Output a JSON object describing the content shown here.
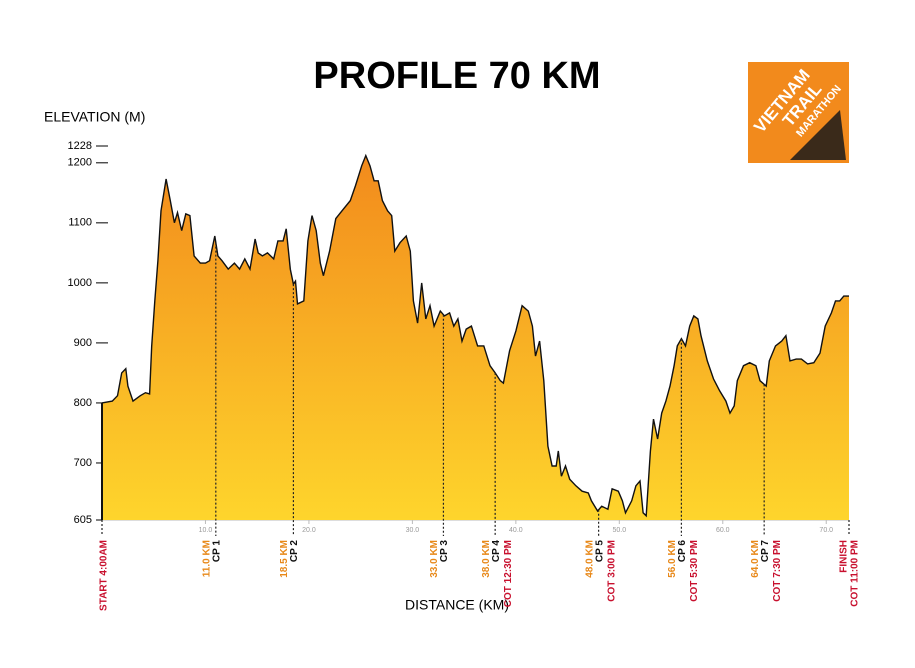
{
  "chart_data": {
    "type": "area",
    "title": "PROFILE 70 KM",
    "y_label": "ELEVATION (M)",
    "x_label": "DISTANCE (KM)",
    "logo": [
      "VIETNAM",
      "TRAIL",
      "MARATHON"
    ],
    "fill_top": "#f28a1c",
    "fill_bottom": "#fed52c",
    "line_color": "#111111",
    "distance_color": "#e8891a",
    "name_color": "#111111",
    "note_color": "#c8102e",
    "xlim": [
      0,
      72.2
    ],
    "ylim": [
      605,
      1228
    ],
    "yticks": [
      605,
      700,
      800,
      900,
      1000,
      1100,
      1200,
      1228
    ],
    "xticks": [
      {
        "value": 10,
        "label": "10.0"
      },
      {
        "value": 20,
        "label": "20.0"
      },
      {
        "value": 30,
        "label": "30.0"
      },
      {
        "value": 40,
        "label": "40.0"
      },
      {
        "value": 50,
        "label": "50.0"
      },
      {
        "value": 60,
        "label": "60.0"
      },
      {
        "value": 70,
        "label": "70.0"
      }
    ],
    "x": [
      0,
      1,
      1.5,
      1.9,
      2.3,
      2.5,
      3,
      3.7,
      4.2,
      4.6,
      4.8,
      5.1,
      5.4,
      5.7,
      6.2,
      6.6,
      7,
      7.3,
      7.7,
      8.1,
      8.5,
      8.9,
      9.5,
      10,
      10.4,
      10.9,
      11.2,
      11.6,
      12.2,
      12.8,
      13.3,
      13.8,
      14.3,
      14.8,
      15.1,
      15.5,
      16,
      16.6,
      17,
      17.5,
      17.8,
      18.2,
      18.5,
      18.7,
      18.9,
      19.5,
      19.9,
      20.3,
      20.7,
      21.1,
      21.4,
      22,
      22.6,
      23.2,
      24,
      24.5,
      25.1,
      25.5,
      25.9,
      26.3,
      26.7,
      27.1,
      27.6,
      28,
      28.3,
      28.8,
      29.4,
      29.8,
      30.1,
      30.5,
      30.9,
      31.3,
      31.7,
      32.1,
      32.7,
      33.1,
      33.6,
      34,
      34.4,
      34.8,
      35.2,
      35.7,
      36.3,
      36.9,
      37.5,
      38,
      38.5,
      38.8,
      39.4,
      40,
      40.6,
      41.2,
      41.6,
      41.9,
      42.3,
      42.7,
      43.1,
      43.5,
      43.9,
      44.1,
      44.4,
      44.8,
      45.2,
      45.8,
      46.4,
      47,
      47.3,
      47.9,
      48.3,
      48.9,
      49.3,
      49.9,
      50.3,
      50.6,
      51.2,
      51.6,
      52,
      52.3,
      52.6,
      53,
      53.3,
      53.7,
      54.1,
      54.5,
      54.9,
      55.3,
      55.6,
      56,
      56.4,
      56.8,
      57.2,
      57.6,
      57.9,
      58.5,
      59.1,
      59.7,
      60.3,
      60.7,
      61.1,
      61.4,
      62,
      62.6,
      63.2,
      63.6,
      64.2,
      64.5,
      65.1,
      65.7,
      66.1,
      66.5,
      67.1,
      67.6,
      68.2,
      68.8,
      69.4,
      69.9,
      70.5,
      70.9,
      71.3,
      71.7,
      72.2
    ],
    "values": [
      800,
      803,
      812,
      850,
      857,
      828,
      803,
      812,
      817,
      815,
      895,
      970,
      1037,
      1120,
      1173,
      1137,
      1100,
      1117,
      1087,
      1115,
      1112,
      1045,
      1033,
      1033,
      1037,
      1078,
      1045,
      1037,
      1023,
      1033,
      1023,
      1040,
      1023,
      1073,
      1050,
      1045,
      1050,
      1040,
      1070,
      1070,
      1090,
      1023,
      998,
      1003,
      965,
      970,
      1070,
      1112,
      1087,
      1033,
      1012,
      1053,
      1107,
      1120,
      1137,
      1162,
      1195,
      1212,
      1195,
      1170,
      1170,
      1137,
      1120,
      1112,
      1053,
      1067,
      1078,
      1053,
      970,
      933,
      1000,
      940,
      962,
      928,
      953,
      945,
      950,
      928,
      940,
      903,
      923,
      928,
      895,
      895,
      862,
      850,
      837,
      833,
      887,
      920,
      962,
      953,
      928,
      878,
      903,
      837,
      728,
      695,
      695,
      720,
      678,
      695,
      673,
      662,
      653,
      650,
      637,
      620,
      628,
      623,
      657,
      653,
      637,
      617,
      637,
      662,
      670,
      617,
      612,
      720,
      773,
      740,
      783,
      803,
      828,
      862,
      895,
      907,
      895,
      928,
      945,
      940,
      912,
      870,
      840,
      820,
      803,
      783,
      795,
      837,
      862,
      867,
      862,
      837,
      828,
      870,
      895,
      903,
      912,
      870,
      873,
      873,
      865,
      867,
      883,
      928,
      950,
      970,
      970,
      978,
      978
    ],
    "checkpoints": [
      {
        "x": 0,
        "notes": [
          "START 4:00AM"
        ]
      },
      {
        "x": 11,
        "distance": "11.0 KM",
        "name": "CP 1"
      },
      {
        "x": 18.5,
        "distance": "18.5 KM",
        "name": "CP 2"
      },
      {
        "x": 33,
        "distance": "33.0 KM",
        "name": "CP 3"
      },
      {
        "x": 38,
        "distance": "38.0 KM",
        "name": "CP 4",
        "notes": [
          "COT 12:30 PM"
        ]
      },
      {
        "x": 48,
        "distance": "48.0 KM",
        "name": "CP 5",
        "notes": [
          "COT 3:00 PM"
        ]
      },
      {
        "x": 56,
        "distance": "56.0 KM",
        "name": "CP 6",
        "notes": [
          "COT 5:30 PM"
        ]
      },
      {
        "x": 64,
        "distance": "64.0 KM",
        "name": "CP 7",
        "notes": [
          "COT 7:30 PM"
        ]
      },
      {
        "x": 72.2,
        "notes": [
          "FINISH",
          "COT 11:00 PM"
        ]
      }
    ]
  }
}
